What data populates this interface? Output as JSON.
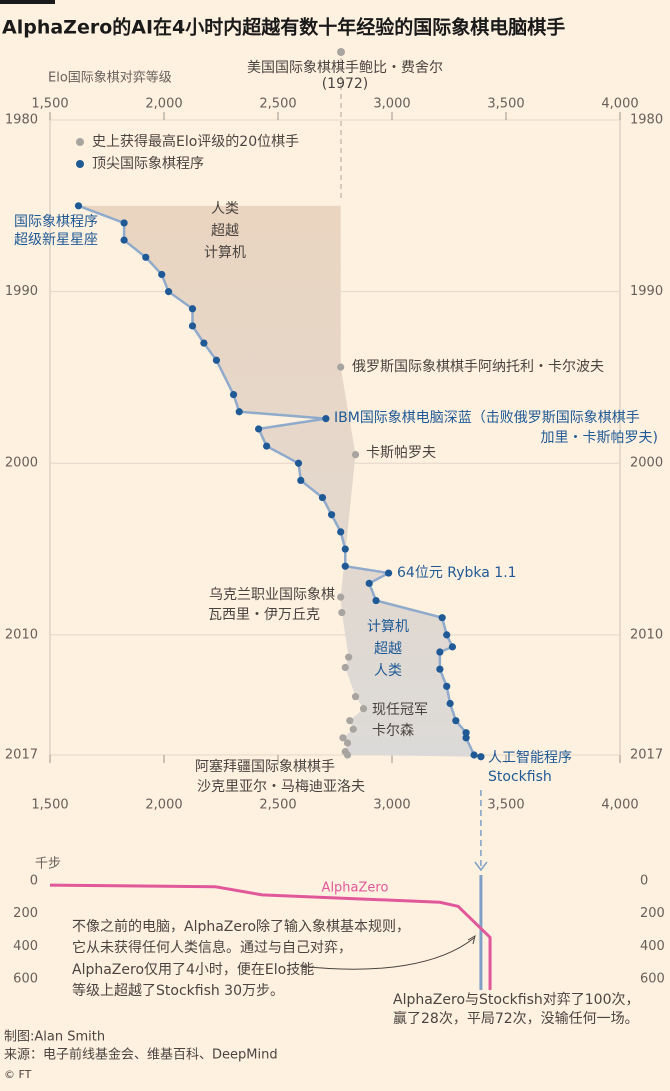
{
  "title": "AlphaZero的AI在4小时内超越有数十年经验的国际象棋电脑棋手",
  "chart_data": [
    {
      "type": "line",
      "x_label": "Elo国际象棋对弈等级",
      "xlim": [
        1500,
        4000
      ],
      "xticks": [
        {
          "value": 1500,
          "label": "1,500"
        },
        {
          "value": 2000,
          "label": "2,000"
        },
        {
          "value": 2500,
          "label": "2,500"
        },
        {
          "value": 3000,
          "label": "3,000"
        },
        {
          "value": 3500,
          "label": "3,500"
        },
        {
          "value": 4000,
          "label": "4,000"
        }
      ],
      "ylim": [
        1980,
        2017
      ],
      "yticks": [
        1980,
        1990,
        2000,
        2010,
        2017
      ],
      "grid": true,
      "series": [
        {
          "name": "史上获得最高Elo评级的20位棋手",
          "color": "#a8a4a0",
          "mode": "markers",
          "x": [
            2775,
            2840,
            2775,
            2780,
            2810,
            2795,
            2840,
            2875,
            2815,
            2830,
            2785,
            2805,
            2795,
            2805
          ],
          "values": [
            1994.4,
            1999.5,
            2007.8,
            2008.7,
            2011.3,
            2011.9,
            2013.6,
            2014.3,
            2015,
            2015.5,
            2016,
            2016.3,
            2016.8,
            2017
          ]
        },
        {
          "name": "顶尖国际象棋程序",
          "color": "#1f5a96",
          "mode": "lines+markers",
          "x": [
            1625,
            1825,
            1825,
            1920,
            1990,
            2020,
            2125,
            2125,
            2175,
            2230,
            2305,
            2330,
            2710,
            2415,
            2450,
            2590,
            2600,
            2695,
            2735,
            2775,
            2795,
            2795,
            2985,
            2900,
            2930,
            3220,
            3240,
            3265,
            3210,
            3210,
            3240,
            3255,
            3280,
            3325,
            3325,
            3360,
            3390
          ],
          "values": [
            1985,
            1986,
            1987,
            1988,
            1989,
            1990,
            1991,
            1992,
            1993,
            1994,
            1996,
            1997,
            1997.4,
            1998,
            1999,
            2000,
            2001,
            2002,
            2003,
            2004,
            2005,
            2006,
            2006.4,
            2007,
            2008,
            2009,
            2010,
            2010.7,
            2011,
            2012,
            2013,
            2014,
            2015,
            2015.7,
            2016,
            2017,
            2017.1
          ]
        }
      ],
      "annotations": [
        "美国国际象棋棋手鲍比・费舍尔",
        "(1972)",
        "国际象棋程序",
        "超级新星星座",
        "人类",
        "超越",
        "计算机",
        "俄罗斯国际象棋棋手阿纳托利・卡尔波夫",
        "IBM国际象棋电脑深蓝（击败俄罗斯国际象棋棋手",
        "加里・卡斯帕罗夫)",
        "卡斯帕罗夫",
        "64位元 Rybka 1.1",
        "乌克兰职业国际象棋",
        "瓦西里・伊万丘克",
        "计算机",
        "超越",
        "人类",
        "现任冠军",
        "卡尔森",
        "阿塞拜疆国际象棋棋手",
        "沙克里亚尔・马梅迪亚洛夫",
        "人工智能程序",
        "Stockfish"
      ]
    },
    {
      "type": "line",
      "y_label": "千步",
      "xlim": [
        1500,
        4000
      ],
      "ylim": [
        0,
        600
      ],
      "yticks": [
        0,
        200,
        400,
        600
      ],
      "grid": false,
      "series": [
        {
          "name": "AlphaZero",
          "color": "#e0589a",
          "x": [
            1500,
            2225,
            2430,
            3210,
            3290,
            3430,
            3430
          ],
          "values": [
            25,
            35,
            85,
            130,
            155,
            345,
            670
          ]
        }
      ],
      "annotations": [
        "不像之前的电脑，AlphaZero除了输入象棋基本规则，",
        "它从未获得任何人类信息。通过与自己对弈，",
        "AlphaZero仅用了4小时，便在Elo技能",
        "等级上超越了Stockfish 30万步。",
        "AlphaZero与Stockfish对弈了100次，",
        "赢了28次，平局72次，没输任何一场。"
      ]
    }
  ],
  "footer": {
    "credit": "制图:Alan Smith",
    "source": "来源：电子前线基金会、维基百科、DeepMind",
    "copyright": "© FT"
  }
}
